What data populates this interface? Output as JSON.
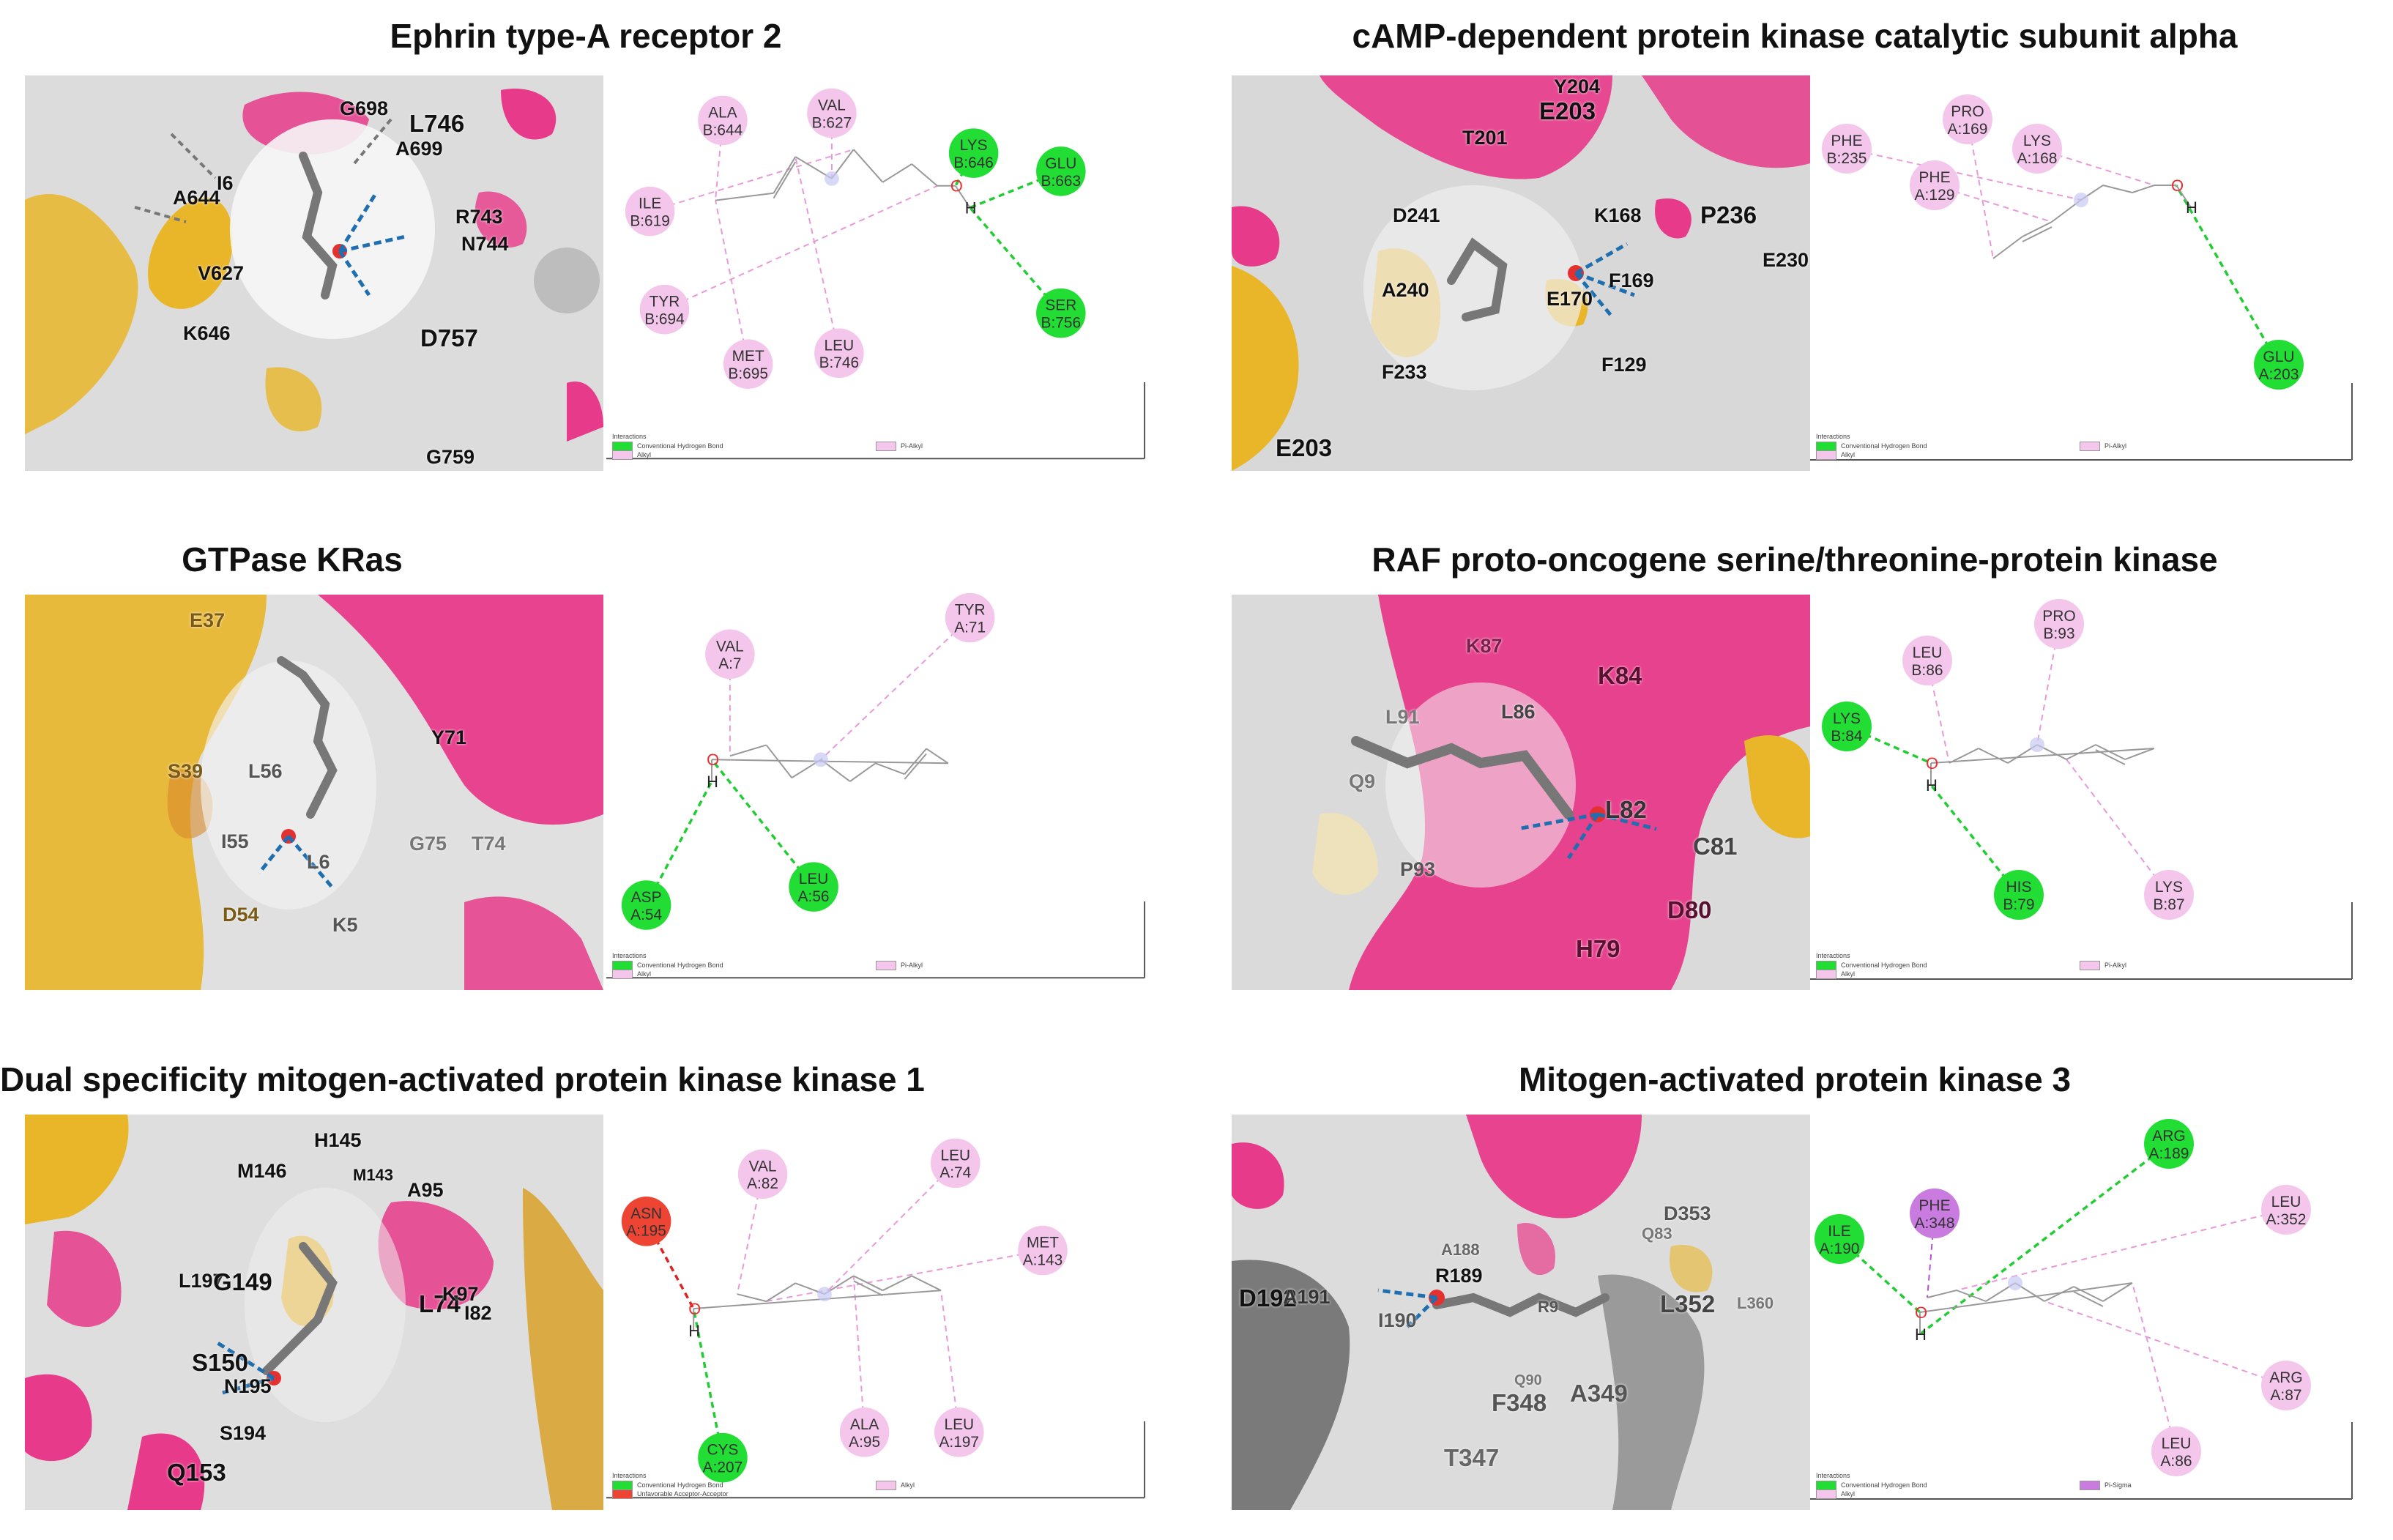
{
  "colors": {
    "hbond": "#22dd33",
    "alkyl": "#f4c6ec",
    "pi_sigma": "#c97be0",
    "unfavorable": "#ee4433",
    "pink_surface": "#e83a8a",
    "gold_surface": "#e9b62a",
    "grey_surface": "#d9d9d9"
  },
  "legend_text": {
    "conventional_hbond": "Conventional Hydrogen Bond",
    "alkyl": "Alkyl",
    "pi_alkyl": "Pi-Alkyl",
    "pi_sigma": "Pi-Sigma",
    "unfavorable": "Unfavorable Acceptor-Acceptor",
    "interactions": "Interactions"
  },
  "panels": [
    {
      "title": "Ephrin type-A receptor 2",
      "surface_labels": [
        "G698",
        "L746",
        "A699",
        "A644",
        "I6",
        "R743",
        "N744",
        "V627",
        "K646",
        "D757",
        "G759"
      ],
      "diagram_labels": {
        "oxygen": "O",
        "hydrogen": "H"
      },
      "residues": [
        {
          "name": "ALA",
          "chain": "B:644",
          "type": "alkyl"
        },
        {
          "name": "VAL",
          "chain": "B:627",
          "type": "alkyl"
        },
        {
          "name": "LYS",
          "chain": "B:646",
          "type": "hbond"
        },
        {
          "name": "GLU",
          "chain": "B:663",
          "type": "hbond"
        },
        {
          "name": "ILE",
          "chain": "B:619",
          "type": "alkyl"
        },
        {
          "name": "TYR",
          "chain": "B:694",
          "type": "alkyl"
        },
        {
          "name": "LEU",
          "chain": "B:746",
          "type": "alkyl"
        },
        {
          "name": "SER",
          "chain": "B:756",
          "type": "hbond"
        },
        {
          "name": "MET",
          "chain": "B:695",
          "type": "alkyl"
        }
      ]
    },
    {
      "title": "cAMP-dependent protein kinase catalytic subunit alpha",
      "surface_labels": [
        "Y204",
        "E203",
        "T201",
        "D241",
        "K168",
        "P236",
        "E230",
        "A240",
        "E170",
        "F169",
        "F233",
        "F129",
        "E203"
      ],
      "diagram_labels": {
        "oxygen": "O",
        "hydrogen": "H"
      },
      "residues": [
        {
          "name": "PRO",
          "chain": "A:169",
          "type": "alkyl"
        },
        {
          "name": "PHE",
          "chain": "B:235",
          "type": "alkyl"
        },
        {
          "name": "LYS",
          "chain": "A:168",
          "type": "alkyl"
        },
        {
          "name": "PHE",
          "chain": "A:129",
          "type": "alkyl"
        },
        {
          "name": "GLU",
          "chain": "A:203",
          "type": "hbond"
        }
      ]
    },
    {
      "title": "GTPase KRas",
      "surface_labels": [
        "E37",
        "Y71",
        "S39",
        "L56",
        "I55",
        "L6",
        "G75",
        "T74",
        "D54",
        "K5"
      ],
      "diagram_labels": {
        "oxygen": "O",
        "hydrogen": "H"
      },
      "residues": [
        {
          "name": "VAL",
          "chain": "A:7",
          "type": "alkyl"
        },
        {
          "name": "TYR",
          "chain": "A:71",
          "type": "alkyl"
        },
        {
          "name": "LEU",
          "chain": "A:56",
          "type": "hbond"
        },
        {
          "name": "ASP",
          "chain": "A:54",
          "type": "hbond"
        }
      ]
    },
    {
      "title": "RAF proto-oncogene serine/threonine-protein kinase",
      "surface_labels": [
        "K87",
        "K84",
        "L91",
        "L86",
        "Q9",
        "L82",
        "C81",
        "P93",
        "D80",
        "H79"
      ],
      "diagram_labels": {
        "oxygen": "O",
        "hydrogen": "H"
      },
      "residues": [
        {
          "name": "LEU",
          "chain": "B:86",
          "type": "alkyl"
        },
        {
          "name": "PRO",
          "chain": "B:93",
          "type": "alkyl"
        },
        {
          "name": "LYS",
          "chain": "B:84",
          "type": "hbond"
        },
        {
          "name": "HIS",
          "chain": "B:79",
          "type": "hbond"
        },
        {
          "name": "LYS",
          "chain": "B:87",
          "type": "alkyl"
        }
      ]
    },
    {
      "title": "Dual specificity mitogen-activated protein kinase kinase 1",
      "surface_labels": [
        "H145",
        "M146",
        "M143",
        "A95",
        "L197",
        "G149",
        "L74",
        "K97",
        "I82",
        "S150",
        "N195",
        "S194",
        "Q153"
      ],
      "diagram_labels": {
        "oxygen": "O",
        "hydrogen": "H"
      },
      "residues": [
        {
          "name": "VAL",
          "chain": "A:82",
          "type": "alkyl"
        },
        {
          "name": "LEU",
          "chain": "A:74",
          "type": "alkyl"
        },
        {
          "name": "ASN",
          "chain": "A:195",
          "type": "unfavorable"
        },
        {
          "name": "MET",
          "chain": "A:143",
          "type": "alkyl"
        },
        {
          "name": "ALA",
          "chain": "A:95",
          "type": "alkyl"
        },
        {
          "name": "LEU",
          "chain": "A:197",
          "type": "alkyl"
        },
        {
          "name": "CYS",
          "chain": "A:207",
          "type": "hbond"
        }
      ]
    },
    {
      "title": "Mitogen-activated protein kinase 3",
      "surface_labels": [
        "D353",
        "Q83",
        "A188",
        "R189",
        "D192",
        "A191",
        "I190",
        "R9",
        "L352",
        "L360",
        "Q90",
        "F348",
        "A349",
        "T347"
      ],
      "diagram_labels": {
        "oxygen": "O",
        "hydrogen": "H"
      },
      "residues": [
        {
          "name": "PHE",
          "chain": "A:348",
          "type": "pi_sigma"
        },
        {
          "name": "ARG",
          "chain": "A:189",
          "type": "hbond"
        },
        {
          "name": "ILE",
          "chain": "A:190",
          "type": "hbond"
        },
        {
          "name": "LEU",
          "chain": "A:352",
          "type": "alkyl"
        },
        {
          "name": "ARG",
          "chain": "A:87",
          "type": "alkyl"
        },
        {
          "name": "LEU",
          "chain": "A:86",
          "type": "alkyl"
        }
      ]
    }
  ]
}
